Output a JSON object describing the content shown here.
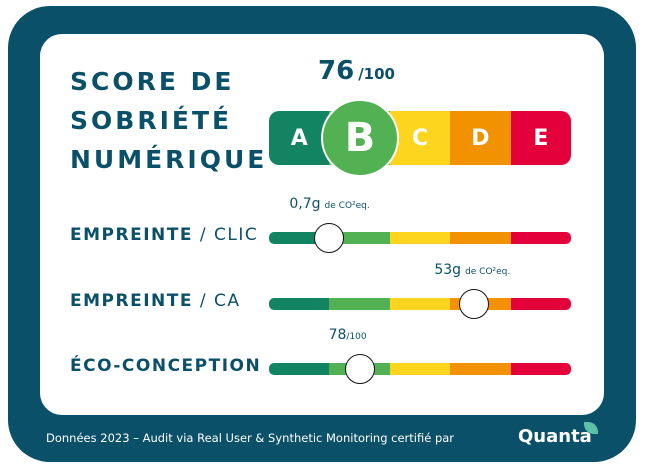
{
  "title_lines": [
    "SCORE DE",
    "SOBRIÉTÉ",
    "NUMÉRIQUE"
  ],
  "score": {
    "value": "76",
    "max": "/100",
    "grade": "B"
  },
  "grades": [
    {
      "label": "A",
      "color": "#138462"
    },
    {
      "label": "B",
      "color": "#52b152"
    },
    {
      "label": "C",
      "color": "#fdd41e"
    },
    {
      "label": "D",
      "color": "#f29200"
    },
    {
      "label": "E",
      "color": "#e4003a"
    }
  ],
  "rows": [
    {
      "label_bold": "EMPREINTE",
      "label_rest": " / CLIC",
      "value": "0,7g",
      "unit": "de CO²eq.",
      "level": 0.2
    },
    {
      "label_bold": "EMPREINTE",
      "label_rest": " / CA",
      "value": "53g",
      "unit": "de CO²eq.",
      "level": 0.68
    },
    {
      "label_bold": "ÉCO-CONCEPTION",
      "label_rest": "",
      "value": "78",
      "unit": "/100",
      "level": 0.3
    }
  ],
  "footer": {
    "text": "Données 2023 – Audit via Real User & Synthetic Monitoring certifié par",
    "logo": "Quanta"
  }
}
